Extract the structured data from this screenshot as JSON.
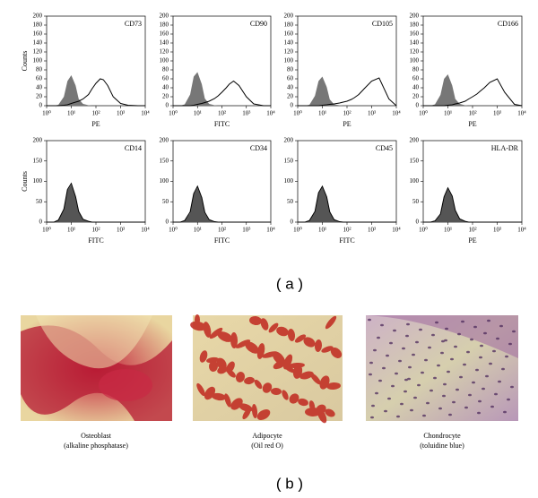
{
  "figure": {
    "label_a": "( a )",
    "label_b": "( b )",
    "images": [
      {
        "caption": "Osteoblast",
        "stain": "(alkaline phosphatase)"
      },
      {
        "caption": "Adipocyte",
        "stain": "(Oil red O)"
      },
      {
        "caption": "Chondrocyte",
        "stain": "(toluidine blue)"
      }
    ]
  },
  "chart_data": [
    {
      "type": "area",
      "annotation": "CD73",
      "xlabel": "PE",
      "ylabel": "Counts",
      "log_x": true,
      "x": [
        1,
        2,
        3,
        5,
        7,
        10,
        15,
        20,
        30,
        50,
        70,
        100,
        150,
        200,
        300,
        500,
        1000,
        2000,
        5000,
        10000
      ],
      "xlim": [
        1,
        10000
      ],
      "xticks": [
        {
          "value": 1,
          "label": "10⁰"
        },
        {
          "value": 10,
          "label": "10¹"
        },
        {
          "value": 100,
          "label": "10²"
        },
        {
          "value": 1000,
          "label": "10³"
        },
        {
          "value": 10000,
          "label": "10⁴"
        }
      ],
      "ylim": [
        0,
        200
      ],
      "yticks": [
        0,
        20,
        40,
        60,
        80,
        100,
        120,
        140,
        160,
        180,
        200
      ],
      "series": [
        {
          "color": "#777777",
          "filled": true,
          "values": [
            0,
            0,
            2,
            20,
            55,
            68,
            45,
            15,
            4,
            1,
            0,
            0,
            0,
            0,
            0,
            0,
            0,
            0,
            0,
            0
          ]
        },
        {
          "color": "#000000",
          "filled": false,
          "values": [
            0,
            0,
            0,
            1,
            2,
            5,
            8,
            10,
            15,
            25,
            38,
            50,
            60,
            58,
            45,
            20,
            5,
            1,
            0,
            0
          ]
        }
      ]
    },
    {
      "type": "area",
      "annotation": "CD90",
      "xlabel": "FITC",
      "log_x": true,
      "x": [
        1,
        2,
        3,
        5,
        7,
        10,
        15,
        20,
        30,
        50,
        70,
        100,
        150,
        200,
        300,
        500,
        1000,
        2000,
        5000,
        10000
      ],
      "xlim": [
        1,
        10000
      ],
      "xticks": [
        {
          "value": 1,
          "label": "10⁰"
        },
        {
          "value": 10,
          "label": "10¹"
        },
        {
          "value": 100,
          "label": "10²"
        },
        {
          "value": 1000,
          "label": "10³"
        },
        {
          "value": 10000,
          "label": "10⁴"
        }
      ],
      "ylim": [
        0,
        200
      ],
      "yticks": [
        0,
        20,
        40,
        60,
        80,
        100,
        120,
        140,
        160,
        180,
        200
      ],
      "series": [
        {
          "color": "#777777",
          "filled": true,
          "values": [
            0,
            0,
            3,
            25,
            65,
            75,
            48,
            16,
            4,
            1,
            0,
            0,
            0,
            0,
            0,
            0,
            0,
            0,
            0,
            0
          ]
        },
        {
          "color": "#000000",
          "filled": false,
          "values": [
            0,
            0,
            0,
            0,
            1,
            3,
            5,
            7,
            10,
            16,
            22,
            30,
            40,
            48,
            55,
            45,
            20,
            4,
            0,
            0
          ]
        }
      ]
    },
    {
      "type": "area",
      "annotation": "CD105",
      "xlabel": "PE",
      "log_x": true,
      "x": [
        1,
        2,
        3,
        5,
        7,
        10,
        15,
        20,
        30,
        50,
        70,
        100,
        150,
        200,
        300,
        500,
        1000,
        2000,
        5000,
        10000
      ],
      "xlim": [
        1,
        10000
      ],
      "xticks": [
        {
          "value": 1,
          "label": "10⁰"
        },
        {
          "value": 10,
          "label": "10¹"
        },
        {
          "value": 100,
          "label": "10²"
        },
        {
          "value": 1000,
          "label": "10³"
        },
        {
          "value": 10000,
          "label": "10⁴"
        }
      ],
      "ylim": [
        0,
        200
      ],
      "yticks": [
        0,
        20,
        40,
        60,
        80,
        100,
        120,
        140,
        160,
        180,
        200
      ],
      "series": [
        {
          "color": "#777777",
          "filled": true,
          "values": [
            0,
            0,
            2,
            22,
            55,
            65,
            42,
            14,
            3,
            1,
            0,
            0,
            0,
            0,
            0,
            0,
            0,
            0,
            0,
            0
          ]
        },
        {
          "color": "#000000",
          "filled": false,
          "values": [
            0,
            0,
            0,
            0,
            0,
            1,
            2,
            3,
            4,
            6,
            8,
            10,
            14,
            18,
            25,
            38,
            55,
            62,
            15,
            0
          ]
        }
      ]
    },
    {
      "type": "area",
      "annotation": "CD166",
      "xlabel": "PE",
      "log_x": true,
      "x": [
        1,
        2,
        3,
        5,
        7,
        10,
        15,
        20,
        30,
        50,
        70,
        100,
        150,
        200,
        300,
        500,
        1000,
        2000,
        5000,
        10000
      ],
      "xlim": [
        1,
        10000
      ],
      "xticks": [
        {
          "value": 1,
          "label": "10⁰"
        },
        {
          "value": 10,
          "label": "10¹"
        },
        {
          "value": 100,
          "label": "10²"
        },
        {
          "value": 1000,
          "label": "10³"
        },
        {
          "value": 10000,
          "label": "10⁴"
        }
      ],
      "ylim": [
        0,
        200
      ],
      "yticks": [
        0,
        20,
        40,
        60,
        80,
        100,
        120,
        140,
        160,
        180,
        200
      ],
      "series": [
        {
          "color": "#777777",
          "filled": true,
          "values": [
            0,
            0,
            3,
            24,
            60,
            70,
            45,
            15,
            4,
            1,
            0,
            0,
            0,
            0,
            0,
            0,
            0,
            0,
            0,
            0
          ]
        },
        {
          "color": "#000000",
          "filled": false,
          "values": [
            0,
            0,
            0,
            0,
            0,
            1,
            2,
            4,
            6,
            10,
            15,
            20,
            26,
            32,
            40,
            52,
            60,
            30,
            3,
            0
          ]
        }
      ]
    },
    {
      "type": "area",
      "annotation": "CD14",
      "xlabel": "FITC",
      "ylabel": "Counts",
      "log_x": true,
      "x": [
        1,
        2,
        3,
        5,
        7,
        10,
        15,
        20,
        30,
        50,
        70,
        100,
        150,
        200,
        300,
        500,
        1000,
        2000,
        5000,
        10000
      ],
      "xlim": [
        1,
        10000
      ],
      "xticks": [
        {
          "value": 1,
          "label": "10⁰"
        },
        {
          "value": 10,
          "label": "10¹"
        },
        {
          "value": 100,
          "label": "10²"
        },
        {
          "value": 1000,
          "label": "10³"
        },
        {
          "value": 10000,
          "label": "10⁴"
        }
      ],
      "ylim": [
        0,
        200
      ],
      "yticks": [
        0,
        50,
        100,
        150,
        200
      ],
      "series": [
        {
          "color": "#555555",
          "filled": true,
          "values": [
            0,
            0,
            4,
            30,
            78,
            92,
            60,
            25,
            6,
            1,
            0,
            0,
            0,
            0,
            0,
            0,
            0,
            0,
            0,
            0
          ]
        },
        {
          "color": "#000000",
          "filled": false,
          "values": [
            0,
            0,
            5,
            32,
            80,
            95,
            62,
            26,
            7,
            2,
            0,
            0,
            0,
            0,
            0,
            0,
            0,
            0,
            0,
            0
          ]
        }
      ]
    },
    {
      "type": "area",
      "annotation": "CD34",
      "xlabel": "FITC",
      "log_x": true,
      "x": [
        1,
        2,
        3,
        5,
        7,
        10,
        15,
        20,
        30,
        50,
        70,
        100,
        150,
        200,
        300,
        500,
        1000,
        2000,
        5000,
        10000
      ],
      "xlim": [
        1,
        10000
      ],
      "xticks": [
        {
          "value": 1,
          "label": "10⁰"
        },
        {
          "value": 10,
          "label": "10¹"
        },
        {
          "value": 100,
          "label": "10²"
        },
        {
          "value": 1000,
          "label": "10³"
        },
        {
          "value": 10000,
          "label": "10⁴"
        }
      ],
      "ylim": [
        0,
        200
      ],
      "yticks": [
        0,
        50,
        100,
        150,
        200
      ],
      "series": [
        {
          "color": "#555555",
          "filled": true,
          "values": [
            0,
            0,
            3,
            22,
            68,
            85,
            58,
            22,
            5,
            1,
            0,
            0,
            0,
            0,
            0,
            0,
            0,
            0,
            0,
            0
          ]
        },
        {
          "color": "#000000",
          "filled": false,
          "values": [
            0,
            0,
            4,
            25,
            70,
            88,
            60,
            24,
            6,
            1,
            0,
            0,
            0,
            0,
            0,
            0,
            0,
            0,
            0,
            0
          ]
        }
      ]
    },
    {
      "type": "area",
      "annotation": "CD45",
      "xlabel": "FITC",
      "log_x": true,
      "x": [
        1,
        2,
        3,
        5,
        7,
        10,
        15,
        20,
        30,
        50,
        70,
        100,
        150,
        200,
        300,
        500,
        1000,
        2000,
        5000,
        10000
      ],
      "xlim": [
        1,
        10000
      ],
      "xticks": [
        {
          "value": 1,
          "label": "10⁰"
        },
        {
          "value": 10,
          "label": "10¹"
        },
        {
          "value": 100,
          "label": "10²"
        },
        {
          "value": 1000,
          "label": "10³"
        },
        {
          "value": 10000,
          "label": "10⁴"
        }
      ],
      "ylim": [
        0,
        200
      ],
      "yticks": [
        0,
        50,
        100,
        150,
        200
      ],
      "series": [
        {
          "color": "#555555",
          "filled": true,
          "values": [
            0,
            0,
            3,
            24,
            70,
            86,
            60,
            24,
            6,
            1,
            0,
            0,
            0,
            0,
            0,
            0,
            0,
            0,
            0,
            0
          ]
        },
        {
          "color": "#000000",
          "filled": false,
          "values": [
            0,
            0,
            4,
            26,
            72,
            88,
            62,
            25,
            6,
            1,
            0,
            0,
            0,
            0,
            0,
            0,
            0,
            0,
            0,
            0
          ]
        }
      ]
    },
    {
      "type": "area",
      "annotation": "HLA-DR",
      "xlabel": "PE",
      "log_x": true,
      "x": [
        1,
        2,
        3,
        5,
        7,
        10,
        15,
        20,
        30,
        50,
        70,
        100,
        150,
        200,
        300,
        500,
        1000,
        2000,
        5000,
        10000
      ],
      "xlim": [
        1,
        10000
      ],
      "xticks": [
        {
          "value": 1,
          "label": "10⁰"
        },
        {
          "value": 10,
          "label": "10¹"
        },
        {
          "value": 100,
          "label": "10²"
        },
        {
          "value": 1000,
          "label": "10³"
        },
        {
          "value": 10000,
          "label": "10⁴"
        }
      ],
      "ylim": [
        0,
        200
      ],
      "yticks": [
        0,
        50,
        100,
        150,
        200
      ],
      "series": [
        {
          "color": "#555555",
          "filled": true,
          "values": [
            0,
            0,
            2,
            18,
            60,
            82,
            62,
            28,
            7,
            1,
            0,
            0,
            0,
            0,
            0,
            0,
            0,
            0,
            0,
            0
          ]
        },
        {
          "color": "#000000",
          "filled": false,
          "values": [
            0,
            0,
            3,
            20,
            62,
            84,
            64,
            29,
            8,
            2,
            0,
            0,
            0,
            0,
            0,
            0,
            0,
            0,
            0,
            0
          ]
        }
      ]
    }
  ]
}
